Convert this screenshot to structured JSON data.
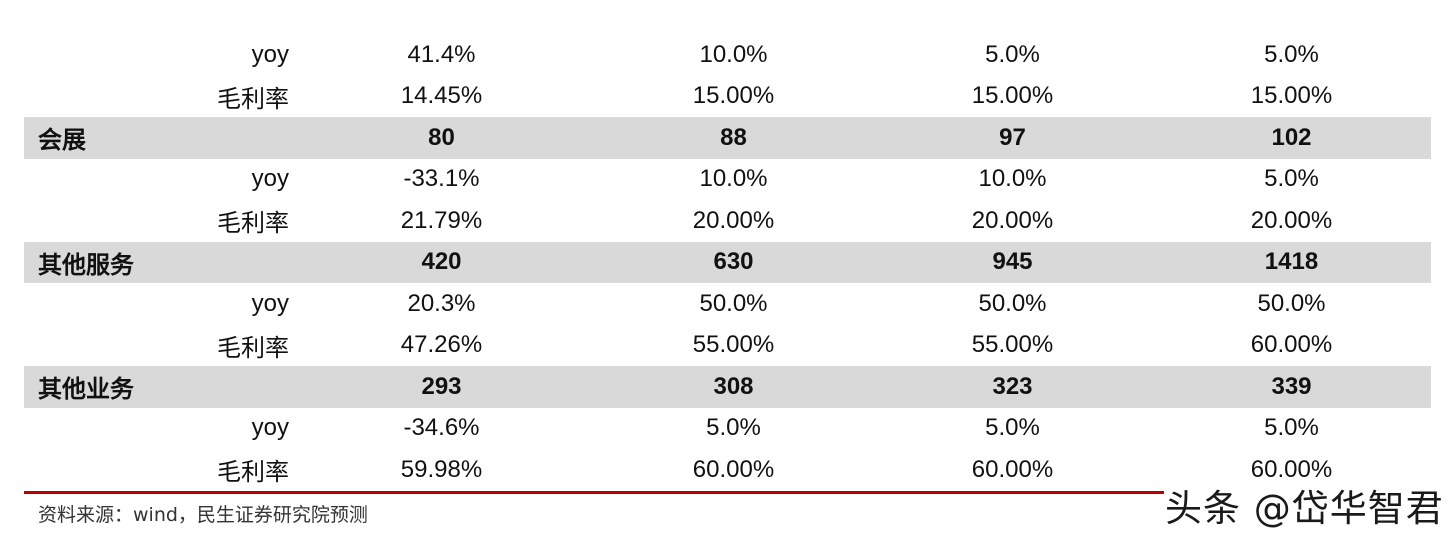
{
  "rows": [
    {
      "kind": "sub",
      "name": "yoy",
      "values": [
        "41.4%",
        "10.0%",
        "5.0%",
        "5.0%"
      ]
    },
    {
      "kind": "sub",
      "name": "毛利率",
      "values": [
        "14.45%",
        "15.00%",
        "15.00%",
        "15.00%"
      ]
    },
    {
      "kind": "sec",
      "name": "会展",
      "values": [
        "80",
        "88",
        "97",
        "102"
      ]
    },
    {
      "kind": "sub",
      "name": "yoy",
      "values": [
        "-33.1%",
        "10.0%",
        "10.0%",
        "5.0%"
      ]
    },
    {
      "kind": "sub",
      "name": "毛利率",
      "values": [
        "21.79%",
        "20.00%",
        "20.00%",
        "20.00%"
      ]
    },
    {
      "kind": "sec",
      "name": "其他服务",
      "values": [
        "420",
        "630",
        "945",
        "1418"
      ]
    },
    {
      "kind": "sub",
      "name": "yoy",
      "values": [
        "20.3%",
        "50.0%",
        "50.0%",
        "50.0%"
      ]
    },
    {
      "kind": "sub",
      "name": "毛利率",
      "values": [
        "47.26%",
        "55.00%",
        "55.00%",
        "60.00%"
      ]
    },
    {
      "kind": "sec",
      "name": "其他业务",
      "values": [
        "293",
        "308",
        "323",
        "339"
      ]
    },
    {
      "kind": "sub",
      "name": "yoy",
      "values": [
        "-34.6%",
        "5.0%",
        "5.0%",
        "5.0%"
      ]
    },
    {
      "kind": "sub",
      "name": "毛利率",
      "values": [
        "59.98%",
        "60.00%",
        "60.00%",
        "60.00%"
      ]
    }
  ],
  "footer": {
    "source": "资料来源：wind，民生证券研究院预测",
    "watermark": "头条 @岱华智君"
  },
  "colors": {
    "section_band": "#d9d9d9",
    "rule": "#c00000"
  }
}
